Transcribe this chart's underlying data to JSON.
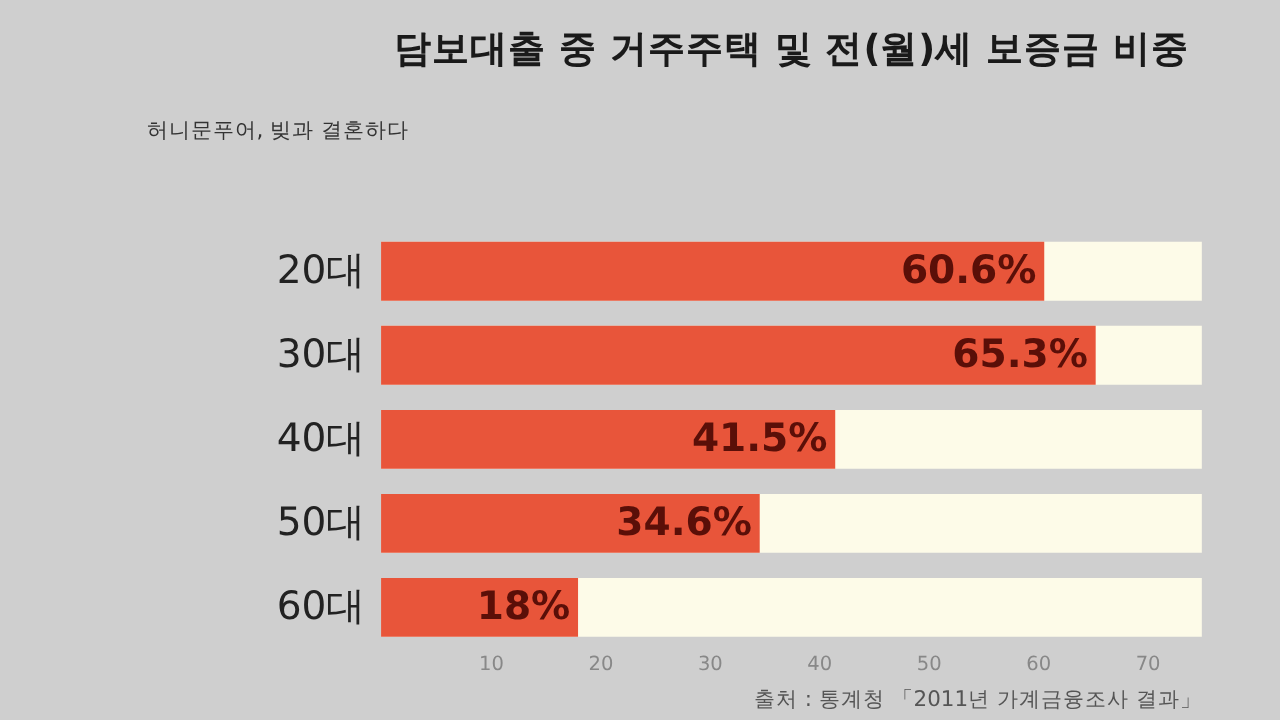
{
  "chart_data": {
    "type": "bar",
    "orientation": "horizontal",
    "title": "담보대출 중 거주주택 및 전(월)세 보증금 비중",
    "categories": [
      "20대",
      "30대",
      "40대",
      "50대",
      "60대"
    ],
    "values": [
      60.6,
      65.3,
      41.5,
      34.6,
      18
    ],
    "value_labels": [
      "60.6%",
      "65.3%",
      "41.5%",
      "34.6%",
      "18%"
    ],
    "color": "#e8553a",
    "xlim": [
      0,
      75
    ],
    "xticks": [
      10,
      20,
      30,
      40,
      50,
      60,
      70
    ],
    "grid": false,
    "annotations": [
      "허니문푸어, 빚과 결혼하다",
      "출처 : 통계청 「2011년 가계금융조사 결과」"
    ]
  }
}
